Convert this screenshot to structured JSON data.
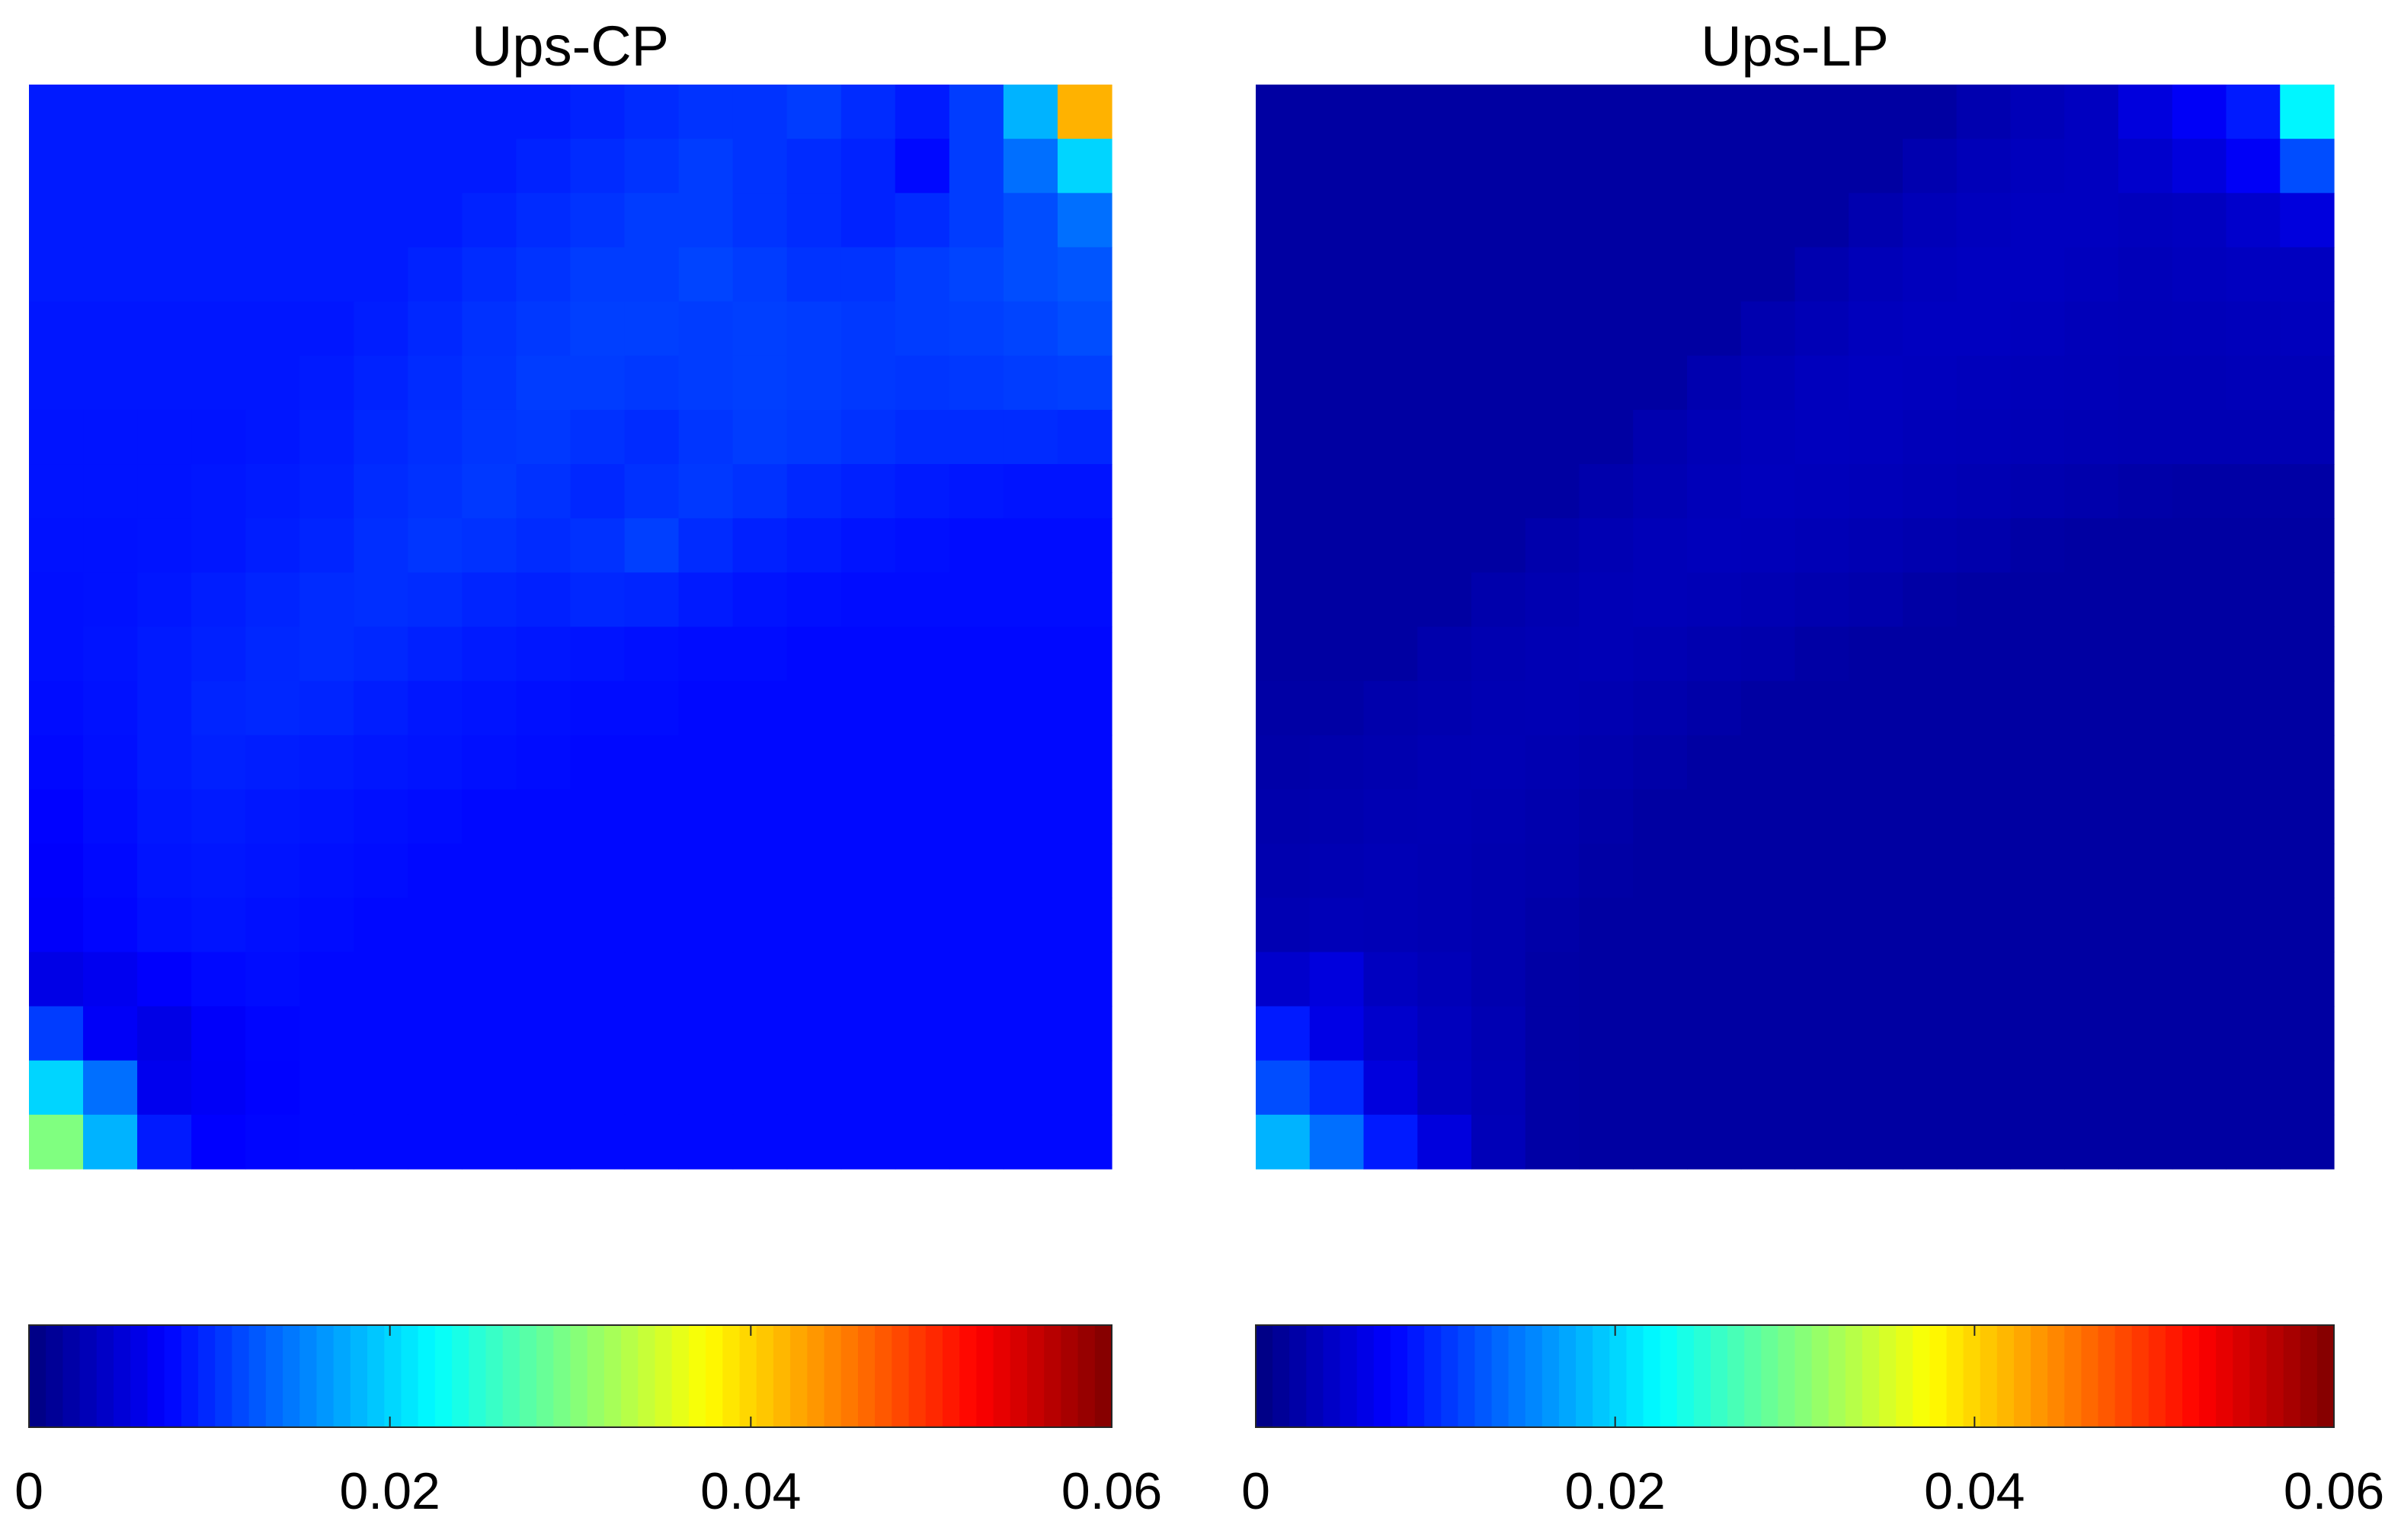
{
  "chart_data": [
    {
      "type": "heatmap",
      "title": "Ups-CP",
      "colormap": "jet",
      "zlim": [
        0,
        0.06
      ],
      "colorbar_ticks": [
        0,
        0.02,
        0.04,
        0.06
      ],
      "z": [
        [
          0.009,
          0.009,
          0.009,
          0.009,
          0.009,
          0.009,
          0.009,
          0.009,
          0.009,
          0.009,
          0.0095,
          0.01,
          0.0105,
          0.0105,
          0.011,
          0.01,
          0.009,
          0.011,
          0.018,
          0.042
        ],
        [
          0.009,
          0.009,
          0.009,
          0.009,
          0.009,
          0.009,
          0.009,
          0.009,
          0.009,
          0.0095,
          0.01,
          0.0105,
          0.011,
          0.0105,
          0.01,
          0.0095,
          0.008,
          0.011,
          0.014,
          0.02
        ],
        [
          0.009,
          0.009,
          0.009,
          0.009,
          0.009,
          0.009,
          0.009,
          0.009,
          0.0095,
          0.01,
          0.0105,
          0.011,
          0.011,
          0.0105,
          0.01,
          0.0095,
          0.01,
          0.011,
          0.012,
          0.014
        ],
        [
          0.009,
          0.009,
          0.009,
          0.009,
          0.009,
          0.009,
          0.009,
          0.0095,
          0.01,
          0.0105,
          0.011,
          0.011,
          0.0115,
          0.011,
          0.0105,
          0.0105,
          0.011,
          0.0115,
          0.012,
          0.0125
        ],
        [
          0.0088,
          0.0088,
          0.0088,
          0.0088,
          0.0088,
          0.0088,
          0.0092,
          0.0098,
          0.0104,
          0.0108,
          0.0112,
          0.0112,
          0.011,
          0.0112,
          0.011,
          0.0108,
          0.011,
          0.0112,
          0.0115,
          0.012
        ],
        [
          0.0088,
          0.0088,
          0.0088,
          0.0088,
          0.0088,
          0.009,
          0.0095,
          0.01,
          0.0105,
          0.011,
          0.011,
          0.0108,
          0.011,
          0.0112,
          0.011,
          0.0108,
          0.0106,
          0.0108,
          0.011,
          0.0112
        ],
        [
          0.0086,
          0.0086,
          0.0086,
          0.0086,
          0.0088,
          0.0092,
          0.0098,
          0.0102,
          0.0106,
          0.0108,
          0.0104,
          0.01,
          0.0106,
          0.011,
          0.0108,
          0.0104,
          0.01,
          0.01,
          0.01,
          0.0098
        ],
        [
          0.0086,
          0.0086,
          0.0086,
          0.0088,
          0.009,
          0.0094,
          0.01,
          0.0104,
          0.0108,
          0.0104,
          0.0098,
          0.0104,
          0.0108,
          0.0104,
          0.0098,
          0.0094,
          0.009,
          0.0088,
          0.0086,
          0.0086
        ],
        [
          0.0085,
          0.0085,
          0.0086,
          0.0088,
          0.0092,
          0.0096,
          0.0102,
          0.0106,
          0.0104,
          0.01,
          0.0104,
          0.0112,
          0.01,
          0.0094,
          0.009,
          0.0086,
          0.0084,
          0.0082,
          0.0082,
          0.0082
        ],
        [
          0.0084,
          0.0085,
          0.0088,
          0.0092,
          0.0096,
          0.01,
          0.0102,
          0.01,
          0.0096,
          0.0094,
          0.0098,
          0.0096,
          0.009,
          0.0086,
          0.0084,
          0.0082,
          0.0082,
          0.0082,
          0.0082,
          0.0082
        ],
        [
          0.0084,
          0.0086,
          0.009,
          0.0094,
          0.0098,
          0.01,
          0.0098,
          0.0094,
          0.009,
          0.0088,
          0.0086,
          0.0084,
          0.0082,
          0.0082,
          0.008,
          0.008,
          0.008,
          0.008,
          0.008,
          0.008
        ],
        [
          0.0082,
          0.0085,
          0.009,
          0.0096,
          0.0098,
          0.0096,
          0.0092,
          0.0088,
          0.0086,
          0.0084,
          0.0082,
          0.0082,
          0.008,
          0.008,
          0.008,
          0.008,
          0.008,
          0.008,
          0.008,
          0.008
        ],
        [
          0.008,
          0.0084,
          0.009,
          0.0094,
          0.0092,
          0.009,
          0.0088,
          0.0086,
          0.0084,
          0.0082,
          0.008,
          0.008,
          0.008,
          0.008,
          0.008,
          0.008,
          0.008,
          0.008,
          0.008,
          0.008
        ],
        [
          0.0076,
          0.0082,
          0.0088,
          0.009,
          0.0088,
          0.0086,
          0.0084,
          0.0082,
          0.008,
          0.008,
          0.008,
          0.008,
          0.008,
          0.008,
          0.008,
          0.008,
          0.008,
          0.008,
          0.008,
          0.008
        ],
        [
          0.0074,
          0.008,
          0.0086,
          0.0088,
          0.0086,
          0.0084,
          0.0082,
          0.008,
          0.008,
          0.008,
          0.008,
          0.008,
          0.008,
          0.008,
          0.008,
          0.008,
          0.008,
          0.008,
          0.008,
          0.008
        ],
        [
          0.0072,
          0.0078,
          0.0084,
          0.0086,
          0.0084,
          0.0082,
          0.008,
          0.008,
          0.008,
          0.008,
          0.008,
          0.008,
          0.008,
          0.008,
          0.008,
          0.008,
          0.008,
          0.008,
          0.008,
          0.008
        ],
        [
          0.006,
          0.0066,
          0.0074,
          0.008,
          0.0082,
          0.008,
          0.008,
          0.008,
          0.008,
          0.008,
          0.008,
          0.008,
          0.008,
          0.008,
          0.008,
          0.008,
          0.008,
          0.008,
          0.008,
          0.008
        ],
        [
          0.011,
          0.007,
          0.006,
          0.0072,
          0.0078,
          0.008,
          0.008,
          0.008,
          0.008,
          0.008,
          0.008,
          0.008,
          0.008,
          0.008,
          0.008,
          0.008,
          0.008,
          0.008,
          0.008,
          0.008
        ],
        [
          0.02,
          0.014,
          0.0065,
          0.007,
          0.0076,
          0.008,
          0.008,
          0.008,
          0.008,
          0.008,
          0.008,
          0.008,
          0.008,
          0.008,
          0.008,
          0.008,
          0.008,
          0.008,
          0.008,
          0.008
        ],
        [
          0.03,
          0.018,
          0.009,
          0.0075,
          0.0078,
          0.008,
          0.008,
          0.008,
          0.008,
          0.008,
          0.008,
          0.008,
          0.008,
          0.008,
          0.008,
          0.008,
          0.008,
          0.008,
          0.008,
          0.008
        ]
      ]
    },
    {
      "type": "heatmap",
      "title": "Ups-LP",
      "colormap": "jet",
      "zlim": [
        0,
        0.06
      ],
      "colorbar_ticks": [
        0,
        0.02,
        0.04,
        0.06
      ],
      "z": [
        [
          0.002,
          0.002,
          0.002,
          0.002,
          0.002,
          0.002,
          0.002,
          0.002,
          0.002,
          0.002,
          0.002,
          0.002,
          0.002,
          0.0028,
          0.0033,
          0.0038,
          0.0055,
          0.007,
          0.009,
          0.022
        ],
        [
          0.002,
          0.002,
          0.002,
          0.002,
          0.002,
          0.002,
          0.002,
          0.002,
          0.002,
          0.002,
          0.002,
          0.002,
          0.0028,
          0.0033,
          0.0036,
          0.0038,
          0.0045,
          0.0055,
          0.007,
          0.012
        ],
        [
          0.002,
          0.002,
          0.002,
          0.002,
          0.002,
          0.002,
          0.002,
          0.002,
          0.002,
          0.002,
          0.002,
          0.0028,
          0.0033,
          0.0036,
          0.0038,
          0.0038,
          0.0036,
          0.0038,
          0.0045,
          0.0055
        ],
        [
          0.002,
          0.002,
          0.002,
          0.002,
          0.002,
          0.002,
          0.002,
          0.002,
          0.002,
          0.002,
          0.0028,
          0.0033,
          0.0036,
          0.0038,
          0.0038,
          0.0036,
          0.0034,
          0.0036,
          0.0038,
          0.0038
        ],
        [
          0.002,
          0.002,
          0.002,
          0.002,
          0.002,
          0.002,
          0.002,
          0.002,
          0.002,
          0.0028,
          0.0032,
          0.0036,
          0.0038,
          0.0038,
          0.0036,
          0.0034,
          0.0033,
          0.0034,
          0.0035,
          0.0036
        ],
        [
          0.002,
          0.002,
          0.002,
          0.002,
          0.002,
          0.002,
          0.002,
          0.002,
          0.0028,
          0.0032,
          0.0036,
          0.0038,
          0.0037,
          0.0035,
          0.0034,
          0.0033,
          0.0032,
          0.0032,
          0.0033,
          0.0033
        ],
        [
          0.002,
          0.002,
          0.002,
          0.002,
          0.002,
          0.002,
          0.002,
          0.0028,
          0.0032,
          0.0035,
          0.0037,
          0.0036,
          0.0034,
          0.0033,
          0.0032,
          0.0031,
          0.003,
          0.003,
          0.003,
          0.003
        ],
        [
          0.002,
          0.002,
          0.002,
          0.002,
          0.002,
          0.002,
          0.0026,
          0.003,
          0.0034,
          0.0036,
          0.0035,
          0.0034,
          0.0032,
          0.003,
          0.0028,
          0.0026,
          0.0024,
          0.0022,
          0.0022,
          0.0022
        ],
        [
          0.002,
          0.002,
          0.002,
          0.002,
          0.002,
          0.0026,
          0.003,
          0.0033,
          0.0035,
          0.0034,
          0.0032,
          0.003,
          0.0028,
          0.0026,
          0.0022,
          0.002,
          0.002,
          0.002,
          0.002,
          0.002
        ],
        [
          0.002,
          0.002,
          0.002,
          0.002,
          0.0026,
          0.0029,
          0.0032,
          0.0033,
          0.0032,
          0.003,
          0.0028,
          0.0026,
          0.0022,
          0.002,
          0.002,
          0.002,
          0.002,
          0.002,
          0.002,
          0.002
        ],
        [
          0.002,
          0.002,
          0.002,
          0.0026,
          0.0029,
          0.0031,
          0.0032,
          0.003,
          0.0028,
          0.0026,
          0.0022,
          0.002,
          0.002,
          0.002,
          0.002,
          0.002,
          0.002,
          0.002,
          0.002,
          0.002
        ],
        [
          0.0022,
          0.0022,
          0.0026,
          0.0028,
          0.003,
          0.0031,
          0.0029,
          0.0027,
          0.0024,
          0.002,
          0.002,
          0.002,
          0.002,
          0.002,
          0.002,
          0.002,
          0.002,
          0.002,
          0.002,
          0.002
        ],
        [
          0.0024,
          0.0026,
          0.0028,
          0.003,
          0.0031,
          0.0029,
          0.0027,
          0.0024,
          0.002,
          0.002,
          0.002,
          0.002,
          0.002,
          0.002,
          0.002,
          0.002,
          0.002,
          0.002,
          0.002,
          0.002
        ],
        [
          0.0026,
          0.0028,
          0.003,
          0.0031,
          0.0029,
          0.0027,
          0.0024,
          0.002,
          0.002,
          0.002,
          0.002,
          0.002,
          0.002,
          0.002,
          0.002,
          0.002,
          0.002,
          0.002,
          0.002,
          0.002
        ],
        [
          0.0028,
          0.003,
          0.0032,
          0.003,
          0.0028,
          0.0026,
          0.0022,
          0.002,
          0.002,
          0.002,
          0.002,
          0.002,
          0.002,
          0.002,
          0.002,
          0.002,
          0.002,
          0.002,
          0.002,
          0.002
        ],
        [
          0.003,
          0.0033,
          0.0032,
          0.003,
          0.0028,
          0.0024,
          0.002,
          0.002,
          0.002,
          0.002,
          0.002,
          0.002,
          0.002,
          0.002,
          0.002,
          0.002,
          0.002,
          0.002,
          0.002,
          0.002
        ],
        [
          0.0045,
          0.0055,
          0.0038,
          0.0033,
          0.0028,
          0.0022,
          0.002,
          0.002,
          0.002,
          0.002,
          0.002,
          0.002,
          0.002,
          0.002,
          0.002,
          0.002,
          0.002,
          0.002,
          0.002,
          0.002
        ],
        [
          0.009,
          0.006,
          0.0045,
          0.0036,
          0.003,
          0.0022,
          0.002,
          0.002,
          0.002,
          0.002,
          0.002,
          0.002,
          0.002,
          0.002,
          0.002,
          0.002,
          0.002,
          0.002,
          0.002,
          0.002
        ],
        [
          0.012,
          0.01,
          0.0055,
          0.0038,
          0.0032,
          0.0022,
          0.002,
          0.002,
          0.002,
          0.002,
          0.002,
          0.002,
          0.002,
          0.002,
          0.002,
          0.002,
          0.002,
          0.002,
          0.002,
          0.002
        ],
        [
          0.018,
          0.014,
          0.009,
          0.0055,
          0.0033,
          0.0022,
          0.002,
          0.002,
          0.002,
          0.002,
          0.002,
          0.002,
          0.002,
          0.002,
          0.002,
          0.002,
          0.002,
          0.002,
          0.002,
          0.002
        ]
      ]
    }
  ]
}
